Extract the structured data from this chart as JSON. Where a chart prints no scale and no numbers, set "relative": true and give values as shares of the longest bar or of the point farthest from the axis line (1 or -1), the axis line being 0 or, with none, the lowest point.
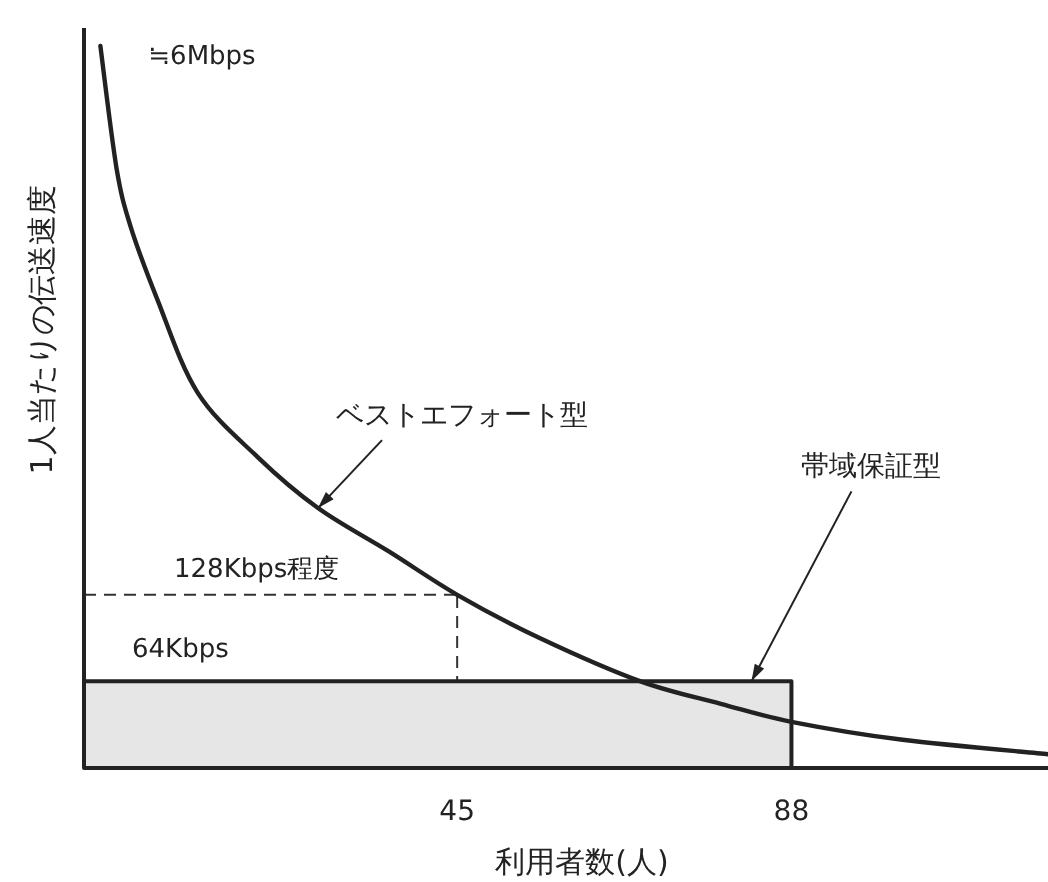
{
  "chart_data": {
    "type": "line",
    "xlabel": "利用者数(人)",
    "ylabel": "1人当たりの伝送速度",
    "relative": true,
    "xlim": [
      -3,
      121
    ],
    "xticks": [
      45,
      88
    ],
    "series": [
      {
        "name": "ベストエフォート型",
        "color": "#222222",
        "x": [
          -0.9,
          1.2,
          3.0,
          6.4,
          11.6,
          19.4,
          27.1,
          36.2,
          45,
          55.6,
          68.6,
          78.9,
          88,
          102.3,
          121
        ],
        "values": [
          1.0,
          0.83,
          0.75,
          0.65,
          0.52,
          0.43,
          0.36,
          0.3,
          0.24,
          0.18,
          0.12,
          0.089,
          0.064,
          0.039,
          0.019
        ]
      },
      {
        "name": "帯域保証型",
        "type": "area",
        "color": "#e6e6e6",
        "x": [
          -3,
          88
        ],
        "values": [
          0.12,
          0.12
        ]
      }
    ],
    "ref_lines": [
      {
        "axis": "y",
        "value": 0.24,
        "label": "128Kbps程度",
        "line_style": "dashed"
      },
      {
        "axis": "x",
        "value": 45,
        "line_style": "dashed"
      }
    ],
    "annotations": [
      {
        "text": "≒6Mbps",
        "x": -0.9,
        "y": 1.0
      },
      {
        "text": "64Kbps",
        "x": -3,
        "y": 0.12
      }
    ]
  }
}
